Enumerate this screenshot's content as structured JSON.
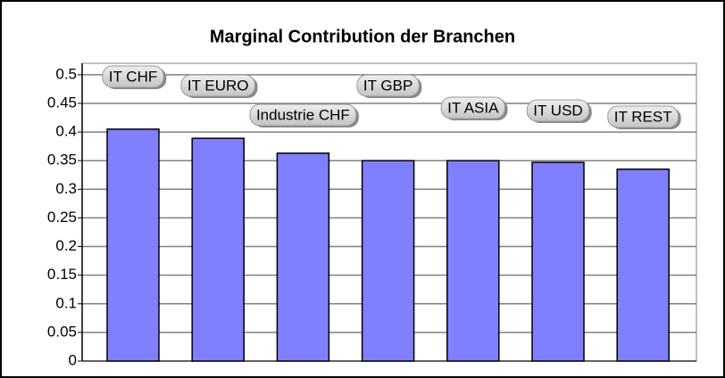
{
  "chart_data": {
    "type": "bar",
    "title": "Marginal Contribution der Branchen",
    "categories": [
      "IT CHF",
      "IT EURO",
      "Industrie CHF",
      "IT GBP",
      "IT ASIA",
      "IT USD",
      "IT REST"
    ],
    "values": [
      0.405,
      0.389,
      0.363,
      0.35,
      0.35,
      0.347,
      0.335
    ],
    "color": "#8080ff",
    "ylim": [
      0,
      0.52
    ],
    "yticks": [
      0,
      0.05,
      0.1,
      0.15,
      0.2,
      0.25,
      0.3,
      0.35,
      0.4,
      0.45,
      0.5
    ],
    "grid": true
  }
}
